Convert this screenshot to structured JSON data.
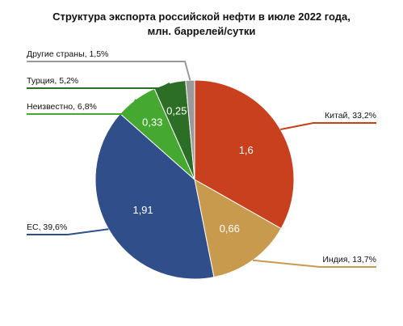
{
  "chart_data": {
    "type": "pie",
    "title_line1": "Структура экспорта российской нефти в июле 2022 года,",
    "title_line2": "млн. баррелей/сутки",
    "slices": [
      {
        "name": "Китай",
        "value": 1.6,
        "value_label": "1,6",
        "percent_label": "33,2%",
        "color": "#C8401E"
      },
      {
        "name": "Индия",
        "value": 0.66,
        "value_label": "0,66",
        "percent_label": "13,7%",
        "color": "#C89A4E"
      },
      {
        "name": "ЕС",
        "value": 1.91,
        "value_label": "1,91",
        "percent_label": "39,6%",
        "color": "#2F4E8A"
      },
      {
        "name": "Неизвестно",
        "value": 0.33,
        "value_label": "0,33",
        "percent_label": "6,8%",
        "color": "#45A830"
      },
      {
        "name": "Турция",
        "value": 0.25,
        "value_label": "0,25",
        "percent_label": "5,2%",
        "color": "#2C6E25"
      },
      {
        "name": "Другие страны",
        "value": 0.07,
        "value_label": "",
        "percent_label": "1,5%",
        "color": "#9A9A9A"
      }
    ]
  }
}
